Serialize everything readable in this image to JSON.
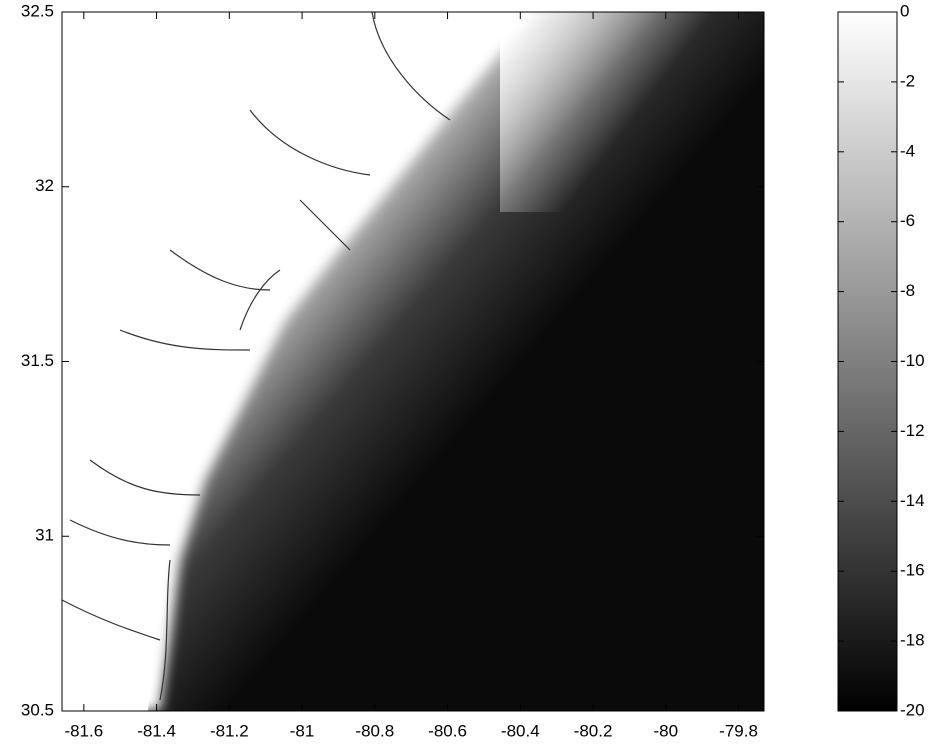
{
  "chart_data": {
    "type": "image",
    "xlim": [
      -81.66,
      -79.73
    ],
    "xticks": [
      -81.6,
      -81.4,
      -81.2,
      -81,
      -80.8,
      -80.6,
      -80.4,
      -80.2,
      -80,
      -79.8
    ],
    "ylim": [
      30.5,
      32.5
    ],
    "yticks": [
      30.5,
      31,
      31.5,
      32,
      32.5
    ],
    "colormap": "gray",
    "colorbar": {
      "clim": [
        -20,
        0
      ],
      "ticks": [
        0,
        -2,
        -4,
        -6,
        -8,
        -10,
        -12,
        -14,
        -16,
        -18,
        -20
      ]
    }
  }
}
